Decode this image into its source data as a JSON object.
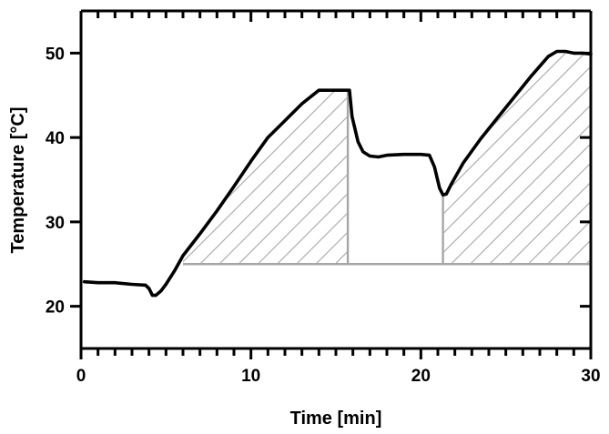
{
  "chart_data": {
    "type": "line",
    "title": "",
    "xlabel": "Time [min]",
    "ylabel": "Temperature [°C]",
    "xlim": [
      0,
      30
    ],
    "ylim": [
      15,
      55
    ],
    "x_ticks": [
      0,
      10,
      20,
      30
    ],
    "y_ticks": [
      20,
      30,
      40,
      50
    ],
    "grid": false,
    "legend": "none",
    "colors": {
      "line": "#000000",
      "hatch": "#a6a6a6",
      "baseline": "#a6a6a6"
    },
    "series": [
      {
        "x": [
          0.2,
          1.0,
          2.0,
          3.0,
          3.8,
          4.0,
          4.2,
          4.4,
          4.7,
          5.0,
          5.5,
          6.0,
          7.0,
          8.0,
          9.0,
          10.0,
          11.0,
          12.0,
          13.0,
          14.0,
          14.3,
          15.0,
          15.5,
          15.8,
          15.95,
          16.3,
          16.6,
          17.0,
          17.5,
          18.0,
          19.0,
          20.0,
          20.5,
          20.8,
          21.1,
          21.3,
          21.5,
          21.8,
          22.5,
          23.5,
          24.5,
          25.5,
          26.5,
          27.5,
          28.0,
          28.5,
          29.0,
          29.5,
          30.0
        ],
        "y": [
          22.9,
          22.8,
          22.8,
          22.6,
          22.5,
          22.1,
          21.3,
          21.3,
          21.8,
          22.6,
          24.2,
          26.0,
          28.6,
          31.3,
          34.2,
          37.2,
          40.0,
          42.0,
          44.0,
          45.6,
          45.6,
          45.6,
          45.6,
          45.6,
          42.5,
          39.5,
          38.3,
          37.8,
          37.7,
          37.9,
          38.0,
          38.0,
          37.9,
          36.5,
          34.0,
          33.2,
          33.3,
          34.5,
          37.0,
          39.8,
          42.3,
          44.8,
          47.3,
          49.6,
          50.2,
          50.2,
          50.0,
          50.0,
          49.9
        ]
      }
    ],
    "shaded_regions": [
      {
        "x_start": 6.0,
        "x_end": 15.7,
        "y_base": 25.0
      },
      {
        "x_start": 21.3,
        "x_end": 30.0,
        "y_base": 25.0
      }
    ],
    "baseline": {
      "y": 25.0,
      "x_start": 6.0,
      "x_end": 30.0
    }
  }
}
